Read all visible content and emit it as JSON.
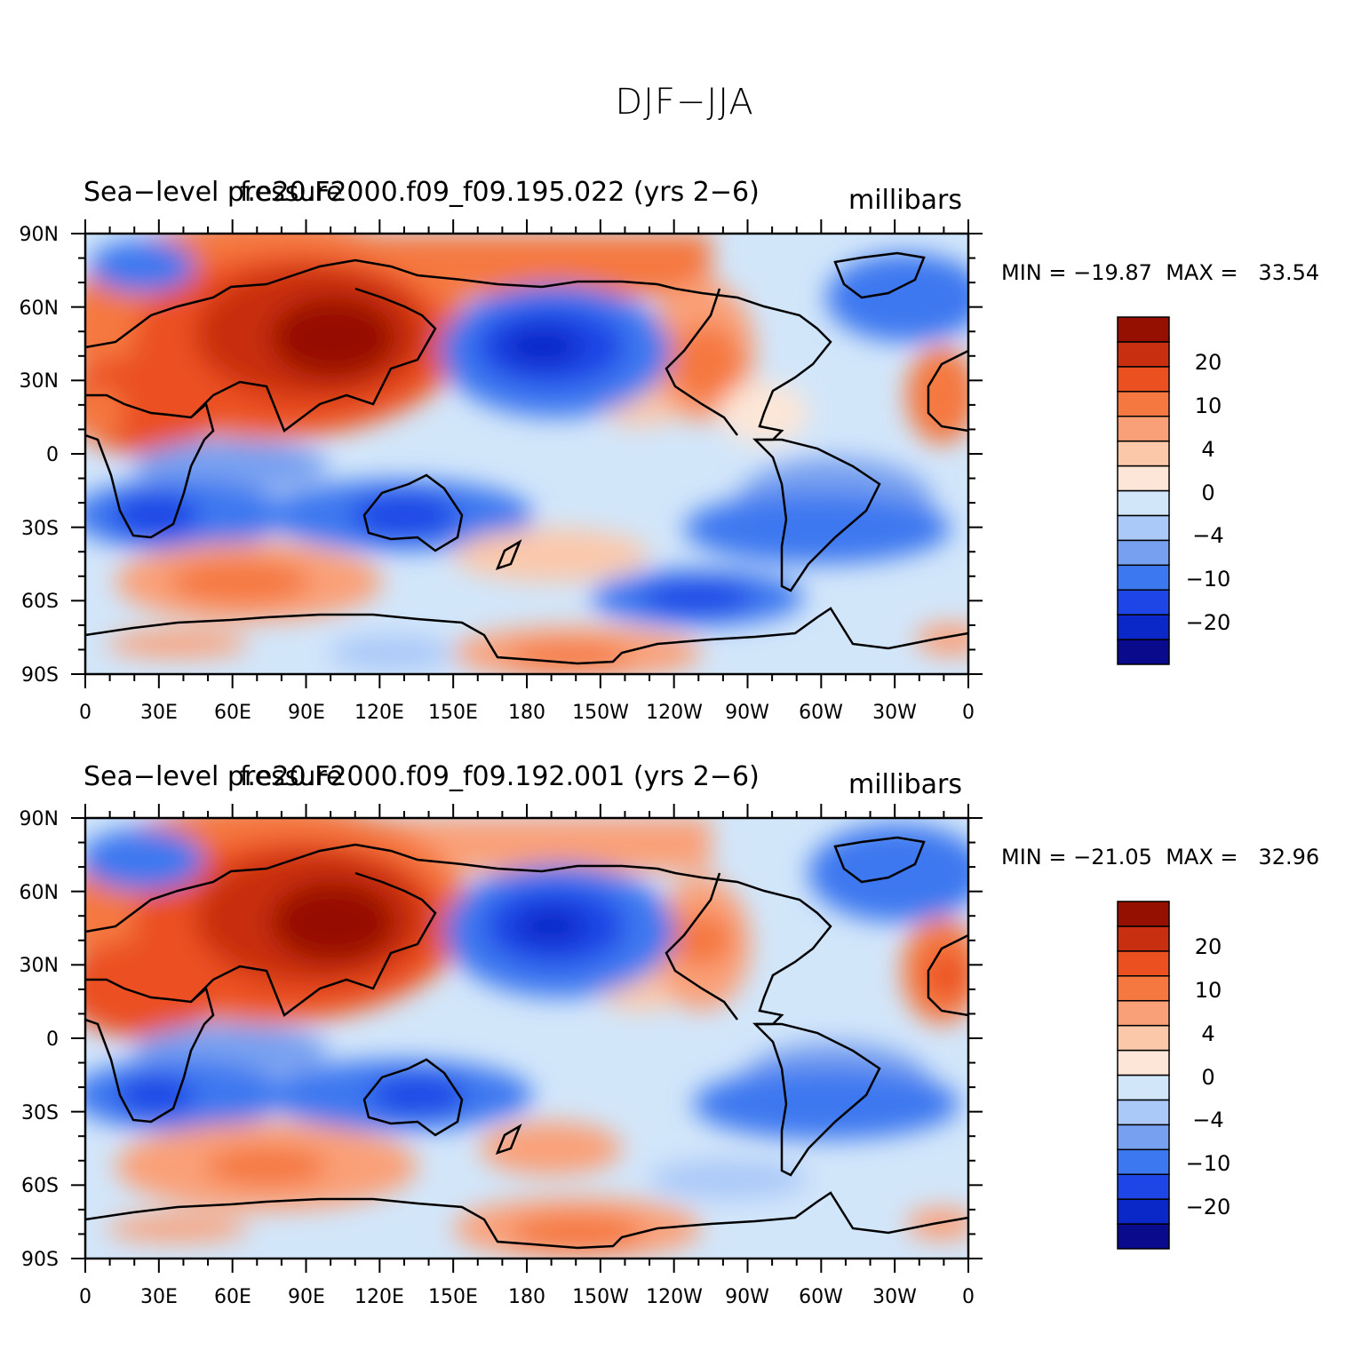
{
  "figure": {
    "title": "DJF−JJA"
  },
  "colors": {
    "levels": [
      "#0a0a8c",
      "#0a28c8",
      "#1e46e6",
      "#3c78f0",
      "#78a0f0",
      "#aac8f8",
      "#d2e6fa",
      "#fde6d7",
      "#fbc8aa",
      "#faa078",
      "#f57840",
      "#eb5020",
      "#c82e10",
      "#961000"
    ],
    "coast": "#000000"
  },
  "panels": [
    {
      "left_title": "Sea−level pressure",
      "center_title": "f.e20.F2000.f09_f09.195.022 (yrs 2−6)",
      "units": "millibars",
      "stats": {
        "min_label": "MIN =",
        "min": "−19.87",
        "max_label": "MAX =",
        "max": "33.54"
      }
    },
    {
      "left_title": "Sea−level pressure",
      "center_title": "f.e20.F2000.f09_f09.192.001 (yrs 2−6)",
      "units": "millibars",
      "stats": {
        "min_label": "MIN =",
        "min": "−21.05",
        "max_label": "MAX =",
        "max": "32.96"
      }
    }
  ],
  "axes": {
    "lat_labels": [
      "90N",
      "60N",
      "30N",
      "0",
      "30S",
      "60S",
      "90S"
    ],
    "lon_labels": [
      "0",
      "30E",
      "60E",
      "90E",
      "120E",
      "150E",
      "180",
      "150W",
      "120W",
      "90W",
      "60W",
      "30W",
      "0"
    ]
  },
  "colorbar": {
    "labels": [
      "20",
      "10",
      "4",
      "0",
      "−4",
      "−10",
      "−20"
    ]
  }
}
